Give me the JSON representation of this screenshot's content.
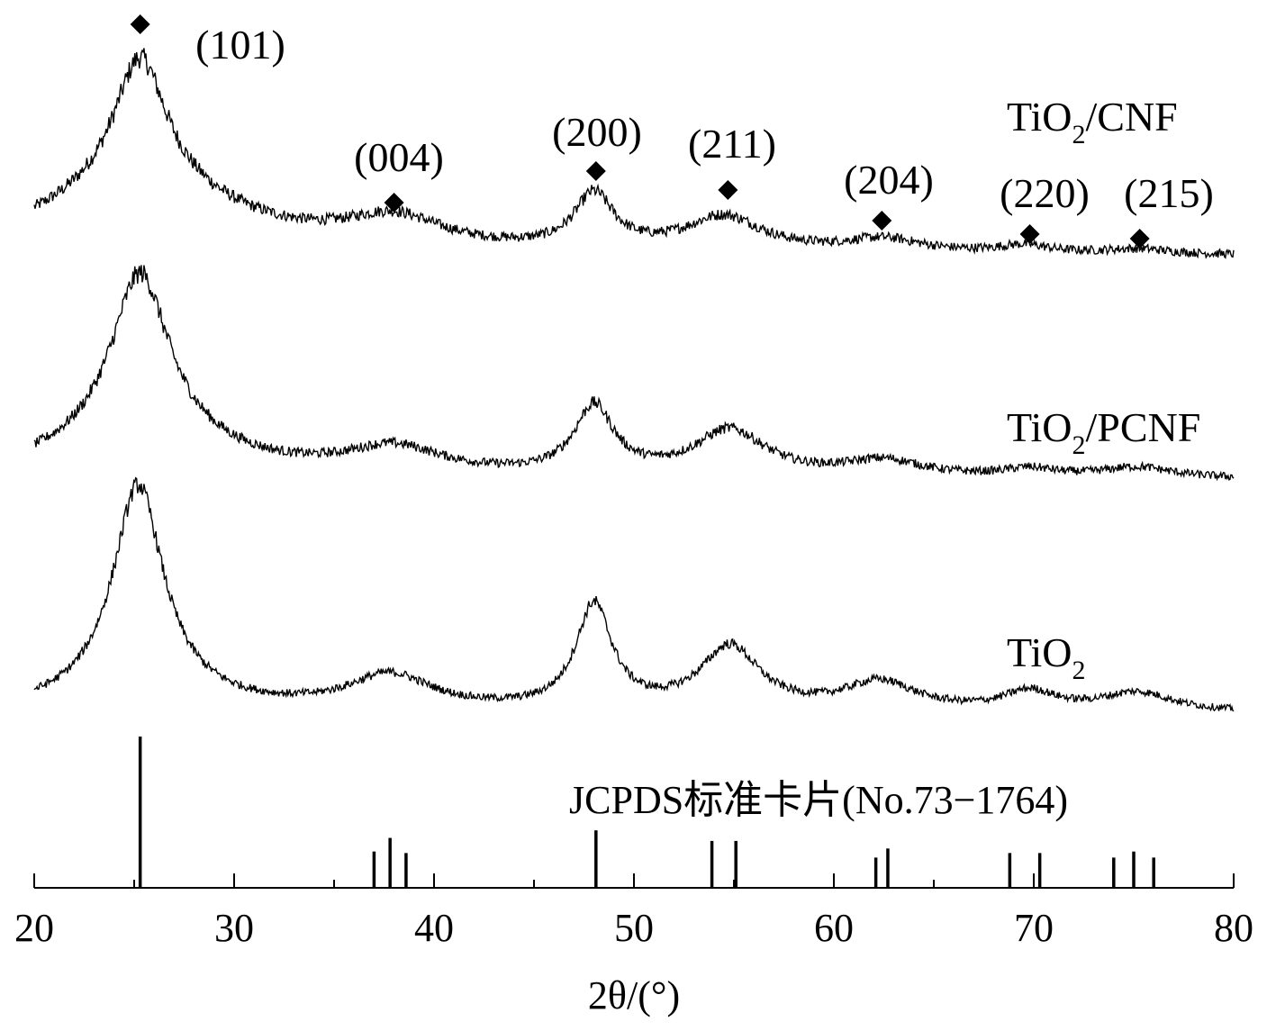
{
  "chart_data": {
    "type": "line",
    "xlabel": "2θ/(°)",
    "xlim": [
      20,
      80
    ],
    "x_ticks": [
      20,
      30,
      40,
      50,
      60,
      70,
      80
    ],
    "y_axis_shown": false,
    "series": [
      {
        "name": "TiO2/CNF",
        "name_main": "TiO",
        "name_sub": "2",
        "name_tail": "/CNF",
        "baseline": 5,
        "noise": 1.4,
        "peaks": [
          {
            "x": 25.3,
            "h": 48,
            "w": 1.6
          },
          {
            "x": 25.3,
            "h": 25,
            "w": 6.0
          },
          {
            "x": 38.0,
            "h": 11,
            "w": 3.0
          },
          {
            "x": 48.0,
            "h": 20,
            "w": 1.2
          },
          {
            "x": 54.5,
            "h": 13,
            "w": 2.4
          },
          {
            "x": 62.5,
            "h": 5,
            "w": 2.4
          },
          {
            "x": 69.5,
            "h": 3,
            "w": 1.6
          },
          {
            "x": 75.2,
            "h": 2,
            "w": 2.0
          }
        ]
      },
      {
        "name": "TiO2/PCNF",
        "name_main": "TiO",
        "name_sub": "2",
        "name_tail": "/PCNF",
        "baseline": 4,
        "noise": 1.3,
        "peaks": [
          {
            "x": 25.3,
            "h": 58,
            "w": 1.7
          },
          {
            "x": 25.3,
            "h": 18,
            "w": 4.5
          },
          {
            "x": 38.0,
            "h": 10,
            "w": 3.0
          },
          {
            "x": 48.0,
            "h": 25,
            "w": 1.2
          },
          {
            "x": 54.8,
            "h": 17,
            "w": 2.2
          },
          {
            "x": 62.5,
            "h": 6,
            "w": 2.4
          },
          {
            "x": 69.8,
            "h": 3,
            "w": 1.6
          },
          {
            "x": 75.2,
            "h": 4,
            "w": 2.2
          }
        ]
      },
      {
        "name": "TiO2",
        "name_main": "TiO",
        "name_sub": "2",
        "name_tail": "",
        "baseline": 3,
        "noise": 1.0,
        "peaks": [
          {
            "x": 25.2,
            "h": 64,
            "w": 1.5
          },
          {
            "x": 25.2,
            "h": 8,
            "w": 3.5
          },
          {
            "x": 37.8,
            "h": 11,
            "w": 2.6
          },
          {
            "x": 48.0,
            "h": 33,
            "w": 1.1
          },
          {
            "x": 54.8,
            "h": 20,
            "w": 1.8
          },
          {
            "x": 62.3,
            "h": 9,
            "w": 2.2
          },
          {
            "x": 69.8,
            "h": 6,
            "w": 1.6
          },
          {
            "x": 75.2,
            "h": 6,
            "w": 2.2
          }
        ]
      }
    ],
    "peak_labels": [
      {
        "label": "(101)",
        "x": 25.3
      },
      {
        "label": "(004)",
        "x": 38.0
      },
      {
        "label": "(200)",
        "x": 48.1
      },
      {
        "label": "(211)",
        "x": 54.7
      },
      {
        "label": "(204)",
        "x": 62.4
      },
      {
        "label": "(220)",
        "x": 69.8
      },
      {
        "label": "(215)",
        "x": 75.3
      }
    ],
    "reference": {
      "label": "JCPDS标准卡片(No.73−1764)",
      "sticks": [
        {
          "x": 25.3,
          "i": 100
        },
        {
          "x": 37.0,
          "i": 24
        },
        {
          "x": 37.8,
          "i": 33
        },
        {
          "x": 38.6,
          "i": 23
        },
        {
          "x": 48.1,
          "i": 38
        },
        {
          "x": 53.9,
          "i": 31
        },
        {
          "x": 55.1,
          "i": 31
        },
        {
          "x": 62.1,
          "i": 20
        },
        {
          "x": 62.7,
          "i": 26
        },
        {
          "x": 68.8,
          "i": 23
        },
        {
          "x": 70.3,
          "i": 23
        },
        {
          "x": 74.0,
          "i": 20
        },
        {
          "x": 75.0,
          "i": 24
        },
        {
          "x": 76.0,
          "i": 20
        }
      ]
    }
  }
}
